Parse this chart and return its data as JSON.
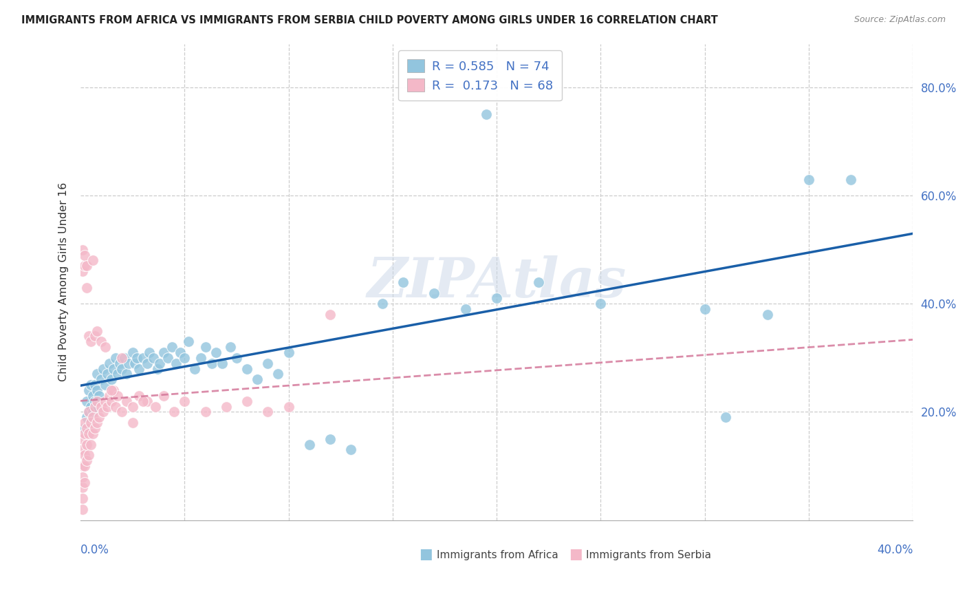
{
  "title": "IMMIGRANTS FROM AFRICA VS IMMIGRANTS FROM SERBIA CHILD POVERTY AMONG GIRLS UNDER 16 CORRELATION CHART",
  "source": "Source: ZipAtlas.com",
  "ylabel": "Child Poverty Among Girls Under 16",
  "xlim": [
    0.0,
    0.4
  ],
  "ylim": [
    0.0,
    0.88
  ],
  "legend_africa_R": "0.585",
  "legend_africa_N": "74",
  "legend_serbia_R": "0.173",
  "legend_serbia_N": "68",
  "africa_color": "#92c5de",
  "serbia_color": "#f4b8c8",
  "africa_line_color": "#1a5fa8",
  "serbia_line_color": "#d4789a",
  "watermark": "ZIPAtlas",
  "ytick_color": "#4472c4",
  "title_color": "#222222",
  "source_color": "#888888",
  "grid_color": "#cccccc",
  "africa_x": [
    0.002,
    0.003,
    0.003,
    0.004,
    0.004,
    0.005,
    0.005,
    0.006,
    0.006,
    0.007,
    0.007,
    0.008,
    0.008,
    0.009,
    0.01,
    0.011,
    0.012,
    0.013,
    0.014,
    0.015,
    0.016,
    0.017,
    0.018,
    0.019,
    0.02,
    0.021,
    0.022,
    0.023,
    0.025,
    0.026,
    0.027,
    0.028,
    0.03,
    0.032,
    0.033,
    0.035,
    0.037,
    0.038,
    0.04,
    0.042,
    0.044,
    0.046,
    0.048,
    0.05,
    0.052,
    0.055,
    0.058,
    0.06,
    0.063,
    0.065,
    0.068,
    0.072,
    0.075,
    0.08,
    0.085,
    0.09,
    0.095,
    0.1,
    0.11,
    0.12,
    0.13,
    0.145,
    0.155,
    0.17,
    0.185,
    0.2,
    0.22,
    0.25,
    0.3,
    0.33,
    0.35,
    0.37,
    0.195,
    0.31
  ],
  "africa_y": [
    0.17,
    0.19,
    0.22,
    0.2,
    0.24,
    0.21,
    0.25,
    0.2,
    0.23,
    0.22,
    0.25,
    0.24,
    0.27,
    0.23,
    0.26,
    0.28,
    0.25,
    0.27,
    0.29,
    0.26,
    0.28,
    0.3,
    0.27,
    0.29,
    0.28,
    0.3,
    0.27,
    0.29,
    0.31,
    0.29,
    0.3,
    0.28,
    0.3,
    0.29,
    0.31,
    0.3,
    0.28,
    0.29,
    0.31,
    0.3,
    0.32,
    0.29,
    0.31,
    0.3,
    0.33,
    0.28,
    0.3,
    0.32,
    0.29,
    0.31,
    0.29,
    0.32,
    0.3,
    0.28,
    0.26,
    0.29,
    0.27,
    0.31,
    0.14,
    0.15,
    0.13,
    0.4,
    0.44,
    0.42,
    0.39,
    0.41,
    0.44,
    0.4,
    0.39,
    0.38,
    0.63,
    0.63,
    0.75,
    0.19
  ],
  "serbia_x": [
    0.001,
    0.001,
    0.001,
    0.001,
    0.001,
    0.001,
    0.001,
    0.002,
    0.002,
    0.002,
    0.002,
    0.002,
    0.003,
    0.003,
    0.003,
    0.004,
    0.004,
    0.004,
    0.005,
    0.005,
    0.006,
    0.006,
    0.007,
    0.007,
    0.008,
    0.008,
    0.009,
    0.01,
    0.011,
    0.012,
    0.013,
    0.014,
    0.015,
    0.016,
    0.017,
    0.018,
    0.02,
    0.022,
    0.025,
    0.028,
    0.032,
    0.036,
    0.04,
    0.045,
    0.05,
    0.06,
    0.07,
    0.08,
    0.09,
    0.1,
    0.12,
    0.001,
    0.001,
    0.002,
    0.002,
    0.003,
    0.003,
    0.004,
    0.005,
    0.006,
    0.007,
    0.008,
    0.01,
    0.012,
    0.015,
    0.02,
    0.025,
    0.03
  ],
  "serbia_y": [
    0.02,
    0.04,
    0.06,
    0.08,
    0.1,
    0.13,
    0.15,
    0.07,
    0.1,
    0.12,
    0.16,
    0.18,
    0.11,
    0.14,
    0.17,
    0.12,
    0.16,
    0.2,
    0.14,
    0.18,
    0.16,
    0.19,
    0.17,
    0.21,
    0.18,
    0.22,
    0.19,
    0.21,
    0.2,
    0.22,
    0.21,
    0.23,
    0.22,
    0.24,
    0.21,
    0.23,
    0.2,
    0.22,
    0.21,
    0.23,
    0.22,
    0.21,
    0.23,
    0.2,
    0.22,
    0.2,
    0.21,
    0.22,
    0.2,
    0.21,
    0.38,
    0.46,
    0.5,
    0.47,
    0.49,
    0.43,
    0.47,
    0.34,
    0.33,
    0.48,
    0.34,
    0.35,
    0.33,
    0.32,
    0.24,
    0.3,
    0.18,
    0.22
  ]
}
